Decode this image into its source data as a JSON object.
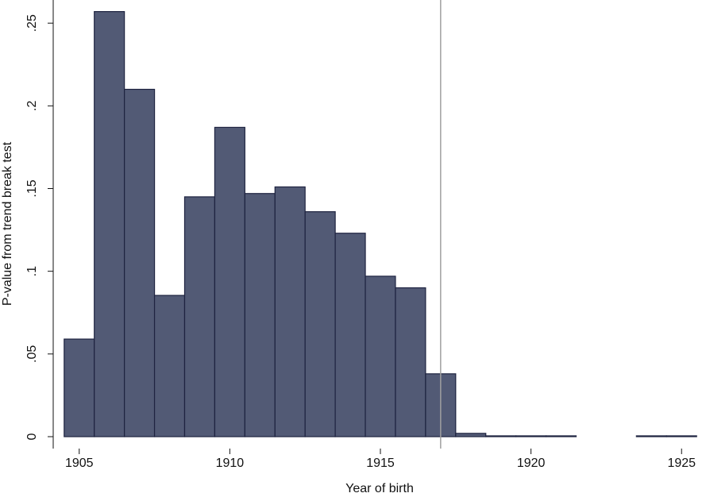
{
  "chart_data": {
    "type": "bar",
    "x_label": "Year of birth",
    "y_label": "P-value from trend break test",
    "x": [
      1905,
      1906,
      1907,
      1908,
      1909,
      1910,
      1911,
      1912,
      1913,
      1914,
      1915,
      1916,
      1917,
      1918,
      1919,
      1920,
      1921,
      1924,
      1925
    ],
    "values": [
      0.059,
      0.257,
      0.21,
      0.0854,
      0.145,
      0.187,
      0.147,
      0.151,
      0.136,
      0.123,
      0.097,
      0.09,
      0.038,
      0.002,
      0.0005,
      0.0005,
      0.0005,
      0.0005,
      0.0005
    ],
    "color": "#525a75",
    "edge_color": "#1e2340",
    "bar_width": 1,
    "vline": 1917,
    "vline_color": "#a0a0a0",
    "xlim": [
      1904.4,
      1925.6
    ],
    "xticks": [
      1905,
      1910,
      1915,
      1920,
      1925
    ],
    "ylim": [
      -0.0072,
      0.264
    ],
    "yticks": [
      0,
      {
        "value": 0.05,
        "label": ".05"
      },
      {
        "value": 0.1,
        "label": ".1"
      },
      {
        "value": 0.15,
        "label": ".15"
      },
      {
        "value": 0.2,
        "label": ".2"
      },
      {
        "value": 0.25,
        "label": ".25"
      }
    ]
  }
}
